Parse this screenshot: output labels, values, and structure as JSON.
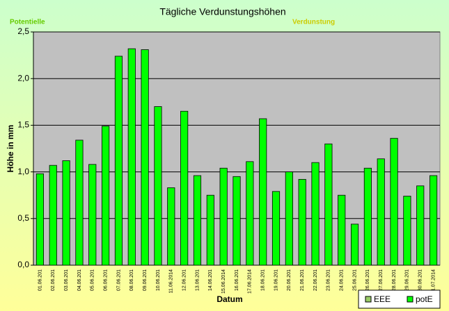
{
  "chart_data": {
    "type": "bar",
    "title": "Tägliche Verdunstungshöhen",
    "annotations": [
      "Potentielle",
      "Verdunstung"
    ],
    "x_label": "Datum",
    "y_label": "Höhe in mm",
    "categories": [
      "01.06.201",
      "02.06.201",
      "03.06.201",
      "04.06.201",
      "05.06.201",
      "06.06.201",
      "07.06.201",
      "08.06.201",
      "09.06.201",
      "10.06.201",
      "11.06.2014",
      "12.06.201",
      "13.06.201",
      "14.06.201",
      "15.06.2014",
      "16.06.201",
      "17.06.2014",
      "18.06.201",
      "19.06.201",
      "20.06.201",
      "21.06.201",
      "22.06.201",
      "23.06.201",
      "24.06.201",
      "25.06.201",
      "26.06.201",
      "27.06.201",
      "28.06.201",
      "29.06.201",
      "30.06.201",
      "01.07.2014"
    ],
    "series": [
      {
        "name": "EEE",
        "color": "#99cc66",
        "values": [
          null,
          null,
          null,
          null,
          null,
          null,
          null,
          null,
          null,
          null,
          null,
          null,
          null,
          null,
          null,
          null,
          null,
          null,
          null,
          null,
          null,
          null,
          null,
          null,
          null,
          null,
          null,
          null,
          null,
          null,
          null
        ]
      },
      {
        "name": "potE",
        "color": "#00ff00",
        "values": [
          0.98,
          1.07,
          1.12,
          1.34,
          1.08,
          1.49,
          2.24,
          2.32,
          2.31,
          1.7,
          0.83,
          1.65,
          0.96,
          0.75,
          1.04,
          0.95,
          1.11,
          1.57,
          0.79,
          1.0,
          0.92,
          1.1,
          1.3,
          0.75,
          0.44,
          1.04,
          1.14,
          1.36,
          0.74,
          0.85,
          0.96
        ]
      }
    ],
    "ylim": [
      0,
      2.5
    ],
    "yticks": [
      {
        "value": 0,
        "label": "0,0"
      },
      {
        "value": 0.5,
        "label": "0,5"
      },
      {
        "value": 1,
        "label": "1,0"
      },
      {
        "value": 1.5,
        "label": "1,5"
      },
      {
        "value": 2,
        "label": "2,0"
      },
      {
        "value": 2.5,
        "label": "2,5"
      }
    ],
    "grid": true,
    "legend": "lower right"
  }
}
